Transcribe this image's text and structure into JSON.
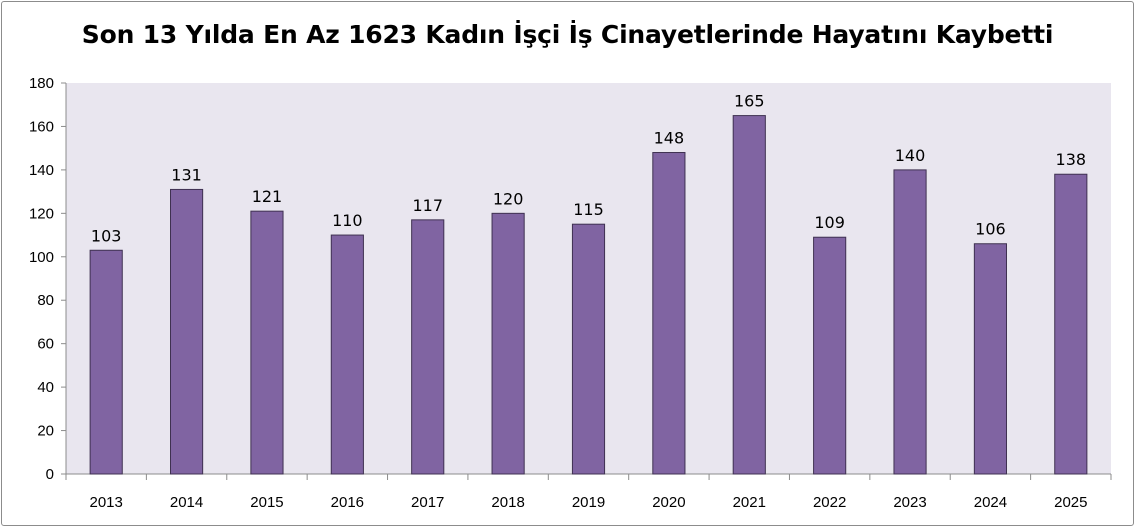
{
  "chart_data": {
    "type": "bar",
    "title": "Son 13 Yılda En Az 1623 Kadın İşçi İş Cinayetlerinde Hayatını Kaybetti",
    "xlabel": "",
    "ylabel": "",
    "categories": [
      "2013",
      "2014",
      "2015",
      "2016",
      "2017",
      "2018",
      "2019",
      "2020",
      "2021",
      "2022",
      "2023",
      "2024",
      "2025"
    ],
    "values": [
      103,
      131,
      121,
      110,
      117,
      120,
      115,
      148,
      165,
      109,
      140,
      106,
      138
    ],
    "ylim": [
      0,
      180
    ],
    "yticks": [
      0,
      20,
      40,
      60,
      80,
      100,
      120,
      140,
      160,
      180
    ],
    "data_labels": true,
    "grid": false,
    "legend": "none",
    "colors": {
      "bar_fill": "#8064a2",
      "bar_stroke": "#3f3151",
      "plot_background": "#e9e6ef",
      "axis": "#8c8c8c"
    }
  }
}
